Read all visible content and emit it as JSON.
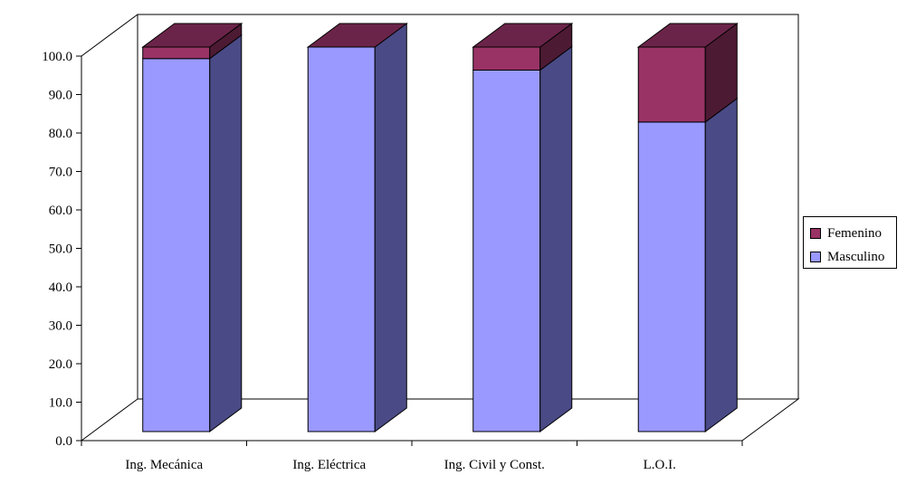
{
  "chart_data": {
    "type": "bar",
    "stacked": true,
    "three_d": true,
    "title": "",
    "xlabel": "",
    "ylabel": "",
    "ylim": [
      0,
      100
    ],
    "y_ticks": [
      "0.0",
      "10.0",
      "20.0",
      "30.0",
      "40.0",
      "50.0",
      "60.0",
      "70.0",
      "80.0",
      "90.0",
      "100.0"
    ],
    "categories": [
      "Ing. Mecánica",
      "Ing. Eléctrica",
      "Ing. Civil y Const.",
      "L.O.I."
    ],
    "series": [
      {
        "name": "Masculino",
        "values": [
          97,
          100,
          94,
          80.5
        ],
        "color": "#9999ff",
        "side_color": "#4a4a86",
        "top_color": "#9999ff"
      },
      {
        "name": "Femenino",
        "values": [
          3,
          0,
          6,
          19.5
        ],
        "color": "#993366",
        "side_color": "#4d1a33",
        "top_color": "#6b2449"
      }
    ],
    "legend": {
      "position": "right",
      "order": [
        "Femenino",
        "Masculino"
      ]
    },
    "grid": false
  }
}
